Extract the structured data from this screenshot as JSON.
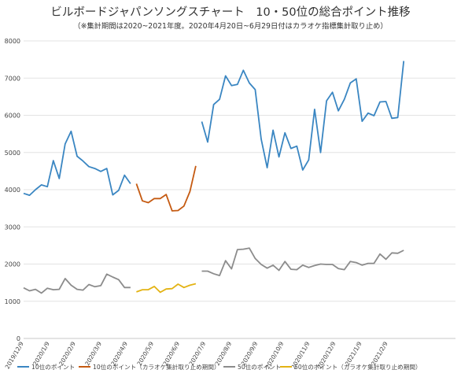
{
  "chart_data": {
    "type": "line",
    "title": "ビルボードジャパンソングスチャート　10・50位の総合ポイント推移",
    "subtitle": "（※集計期間は2020~2021年度。2020年4月20日~6月29日付はカラオケ指標集計取り止め）",
    "ylim": [
      0,
      8000
    ],
    "yticks": [
      "0",
      "1000",
      "2000",
      "3000",
      "4000",
      "5000",
      "6000",
      "7000",
      "8000"
    ],
    "xtick_labels": [
      "2019/12/9",
      "2020/1/9",
      "2020/2/9",
      "2020/3/9",
      "2020/4/9",
      "2020/5/9",
      "2020/6/9",
      "2020/7/9",
      "2020/8/9",
      "2020/9/9",
      "2020/10/9",
      "2020/11/9",
      "2020/12/9",
      "2021/1/9",
      "2021/2/9"
    ],
    "grid": true,
    "legend_position": "bottom",
    "series": [
      {
        "name": "10位のポイント",
        "color": "#3a86c2",
        "start_week": 0,
        "values": [
          3900,
          3850,
          4000,
          4130,
          4080,
          4780,
          4300,
          5230,
          5570,
          4900,
          4770,
          4620,
          4570,
          4490,
          4570,
          3860,
          3980,
          4390,
          4160
        ]
      },
      {
        "name": "10位のポイント（カラオケ集計取り止め期間）",
        "color": "#c55a11",
        "start_week": 19,
        "values": [
          4160,
          3700,
          3650,
          3760,
          3760,
          3870,
          3430,
          3440,
          3560,
          3950,
          4640
        ]
      },
      {
        "name": "50位のポイント",
        "color": "#8c8c8c",
        "start_week": 0,
        "values": [
          1360,
          1280,
          1320,
          1220,
          1350,
          1310,
          1320,
          1610,
          1430,
          1320,
          1300,
          1450,
          1390,
          1420,
          1730,
          1650,
          1580,
          1370,
          1370
        ]
      },
      {
        "name": "50位のポイント（カラオケ集計取り止め期間）",
        "color": "#e3b314",
        "start_week": 19,
        "values": [
          1250,
          1310,
          1310,
          1400,
          1240,
          1330,
          1340,
          1460,
          1370,
          1430,
          1470
        ]
      },
      {
        "name": "10位のポイント",
        "color": "#3a86c2",
        "start_week": 30,
        "values": [
          5830,
          5280,
          6290,
          6430,
          7060,
          6800,
          6830,
          7210,
          6870,
          6690,
          5360,
          4590,
          5600,
          4880,
          5530,
          5110,
          5170,
          4530,
          4800,
          6160,
          5000,
          6390,
          6620,
          6120,
          6430,
          6870,
          6980,
          5840,
          6060,
          5990,
          6360,
          6370,
          5920,
          5940,
          7460
        ]
      },
      {
        "name": "50位のポイント",
        "color": "#8c8c8c",
        "start_week": 30,
        "values": [
          1810,
          1810,
          1740,
          1690,
          2090,
          1870,
          2390,
          2400,
          2430,
          2150,
          1990,
          1890,
          1970,
          1830,
          2070,
          1860,
          1850,
          1970,
          1910,
          1960,
          2000,
          1990,
          1990,
          1880,
          1850,
          2070,
          2040,
          1970,
          2020,
          2020,
          2270,
          2130,
          2300,
          2290,
          2370
        ]
      }
    ]
  },
  "legend": [
    {
      "label": "10位のポイント",
      "color": "#3a86c2"
    },
    {
      "label": "10位のポイント（カラオケ集計取り止め期間）",
      "color": "#c55a11"
    },
    {
      "label": "50位のポイント",
      "color": "#8c8c8c"
    },
    {
      "label": "50位のポイント（カラオケ集計取り止め期間）",
      "color": "#e3b314"
    }
  ]
}
